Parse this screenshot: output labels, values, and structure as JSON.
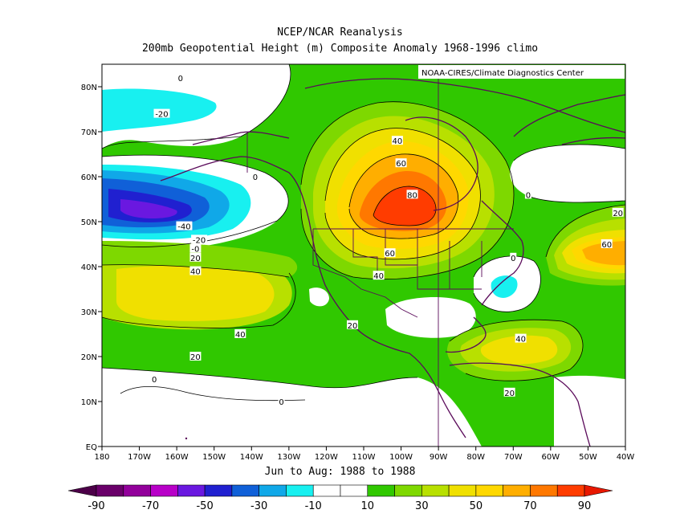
{
  "header": {
    "title": "NCEP/NCAR Reanalysis",
    "subtitle": "200mb Geopotential Height (m) Composite Anomaly 1968-1996 climo"
  },
  "credit": "NOAA-CIRES/Climate Diagnostics Center",
  "period": "Jun to Aug: 1988 to 1988",
  "axes": {
    "lat_ticks": [
      "80N",
      "70N",
      "60N",
      "50N",
      "40N",
      "30N",
      "20N",
      "10N",
      "EQ"
    ],
    "lon_ticks": [
      "180",
      "170W",
      "160W",
      "150W",
      "140W",
      "130W",
      "120W",
      "110W",
      "100W",
      "90W",
      "80W",
      "70W",
      "60W",
      "50W",
      "40W"
    ]
  },
  "contour_labels": [
    {
      "text": "0",
      "lon": -159,
      "lat": 82
    },
    {
      "text": "-20",
      "lon": -164,
      "lat": 74
    },
    {
      "text": "0",
      "lon": -139,
      "lat": 60
    },
    {
      "text": "-40",
      "lon": -158,
      "lat": 49
    },
    {
      "text": "-20",
      "lon": -154,
      "lat": 46
    },
    {
      "text": "-0",
      "lon": -155,
      "lat": 44
    },
    {
      "text": "20",
      "lon": -155,
      "lat": 42
    },
    {
      "text": "40",
      "lon": -155,
      "lat": 39
    },
    {
      "text": "40",
      "lon": -101,
      "lat": 68
    },
    {
      "text": "60",
      "lon": -100,
      "lat": 63
    },
    {
      "text": "80",
      "lon": -97,
      "lat": 56
    },
    {
      "text": "60",
      "lon": -103,
      "lat": 43
    },
    {
      "text": "40",
      "lon": -106,
      "lat": 38
    },
    {
      "text": "0",
      "lon": -70,
      "lat": 42
    },
    {
      "text": "20",
      "lon": -113,
      "lat": 27
    },
    {
      "text": "40",
      "lon": -143,
      "lat": 25
    },
    {
      "text": "20",
      "lon": -155,
      "lat": 20
    },
    {
      "text": "0",
      "lon": -166,
      "lat": 15
    },
    {
      "text": "0",
      "lon": -132,
      "lat": 10
    },
    {
      "text": "0",
      "lon": -66,
      "lat": 56
    },
    {
      "text": "20",
      "lon": -42,
      "lat": 52
    },
    {
      "text": "60",
      "lon": -45,
      "lat": 45
    },
    {
      "text": "40",
      "lon": -68,
      "lat": 24
    },
    {
      "text": "20",
      "lon": -71,
      "lat": 12
    }
  ],
  "colorbar": {
    "labels": [
      "-90",
      "-70",
      "-50",
      "-30",
      "-10",
      "10",
      "30",
      "50",
      "70",
      "90"
    ],
    "colors": [
      "#6a006a",
      "#92009b",
      "#b800c8",
      "#6a18e0",
      "#2020d0",
      "#1060d8",
      "#10a8e8",
      "#18f0f0",
      "#ffffff",
      "#ffffff",
      "#30c800",
      "#7ed800",
      "#b8e000",
      "#f0e000",
      "#ffd800",
      "#ffae00",
      "#ff7800",
      "#ff3c00"
    ],
    "under_color": "#4c0048",
    "over_color": "#e81800"
  },
  "chart_data": {
    "type": "map_contour",
    "variable": "200mb Geopotential Height Composite Anomaly (m)",
    "contour_interval": 10,
    "lon_range": [
      -180,
      -40
    ],
    "lat_range": [
      0,
      85
    ],
    "features": [
      {
        "kind": "max",
        "value": 80,
        "lon": -98,
        "lat": 52
      },
      {
        "kind": "min",
        "value": -40,
        "lon": -160,
        "lat": 50
      },
      {
        "kind": "min",
        "value": -20,
        "lon": -165,
        "lat": 74
      },
      {
        "kind": "max",
        "value": 60,
        "lon": -45,
        "lat": 45
      },
      {
        "kind": "max",
        "value": 40,
        "lon": -150,
        "lat": 37
      },
      {
        "kind": "max",
        "value": 40,
        "lon": -65,
        "lat": 25
      },
      {
        "kind": "min",
        "value": -10,
        "lon": -70,
        "lat": 37
      }
    ]
  }
}
